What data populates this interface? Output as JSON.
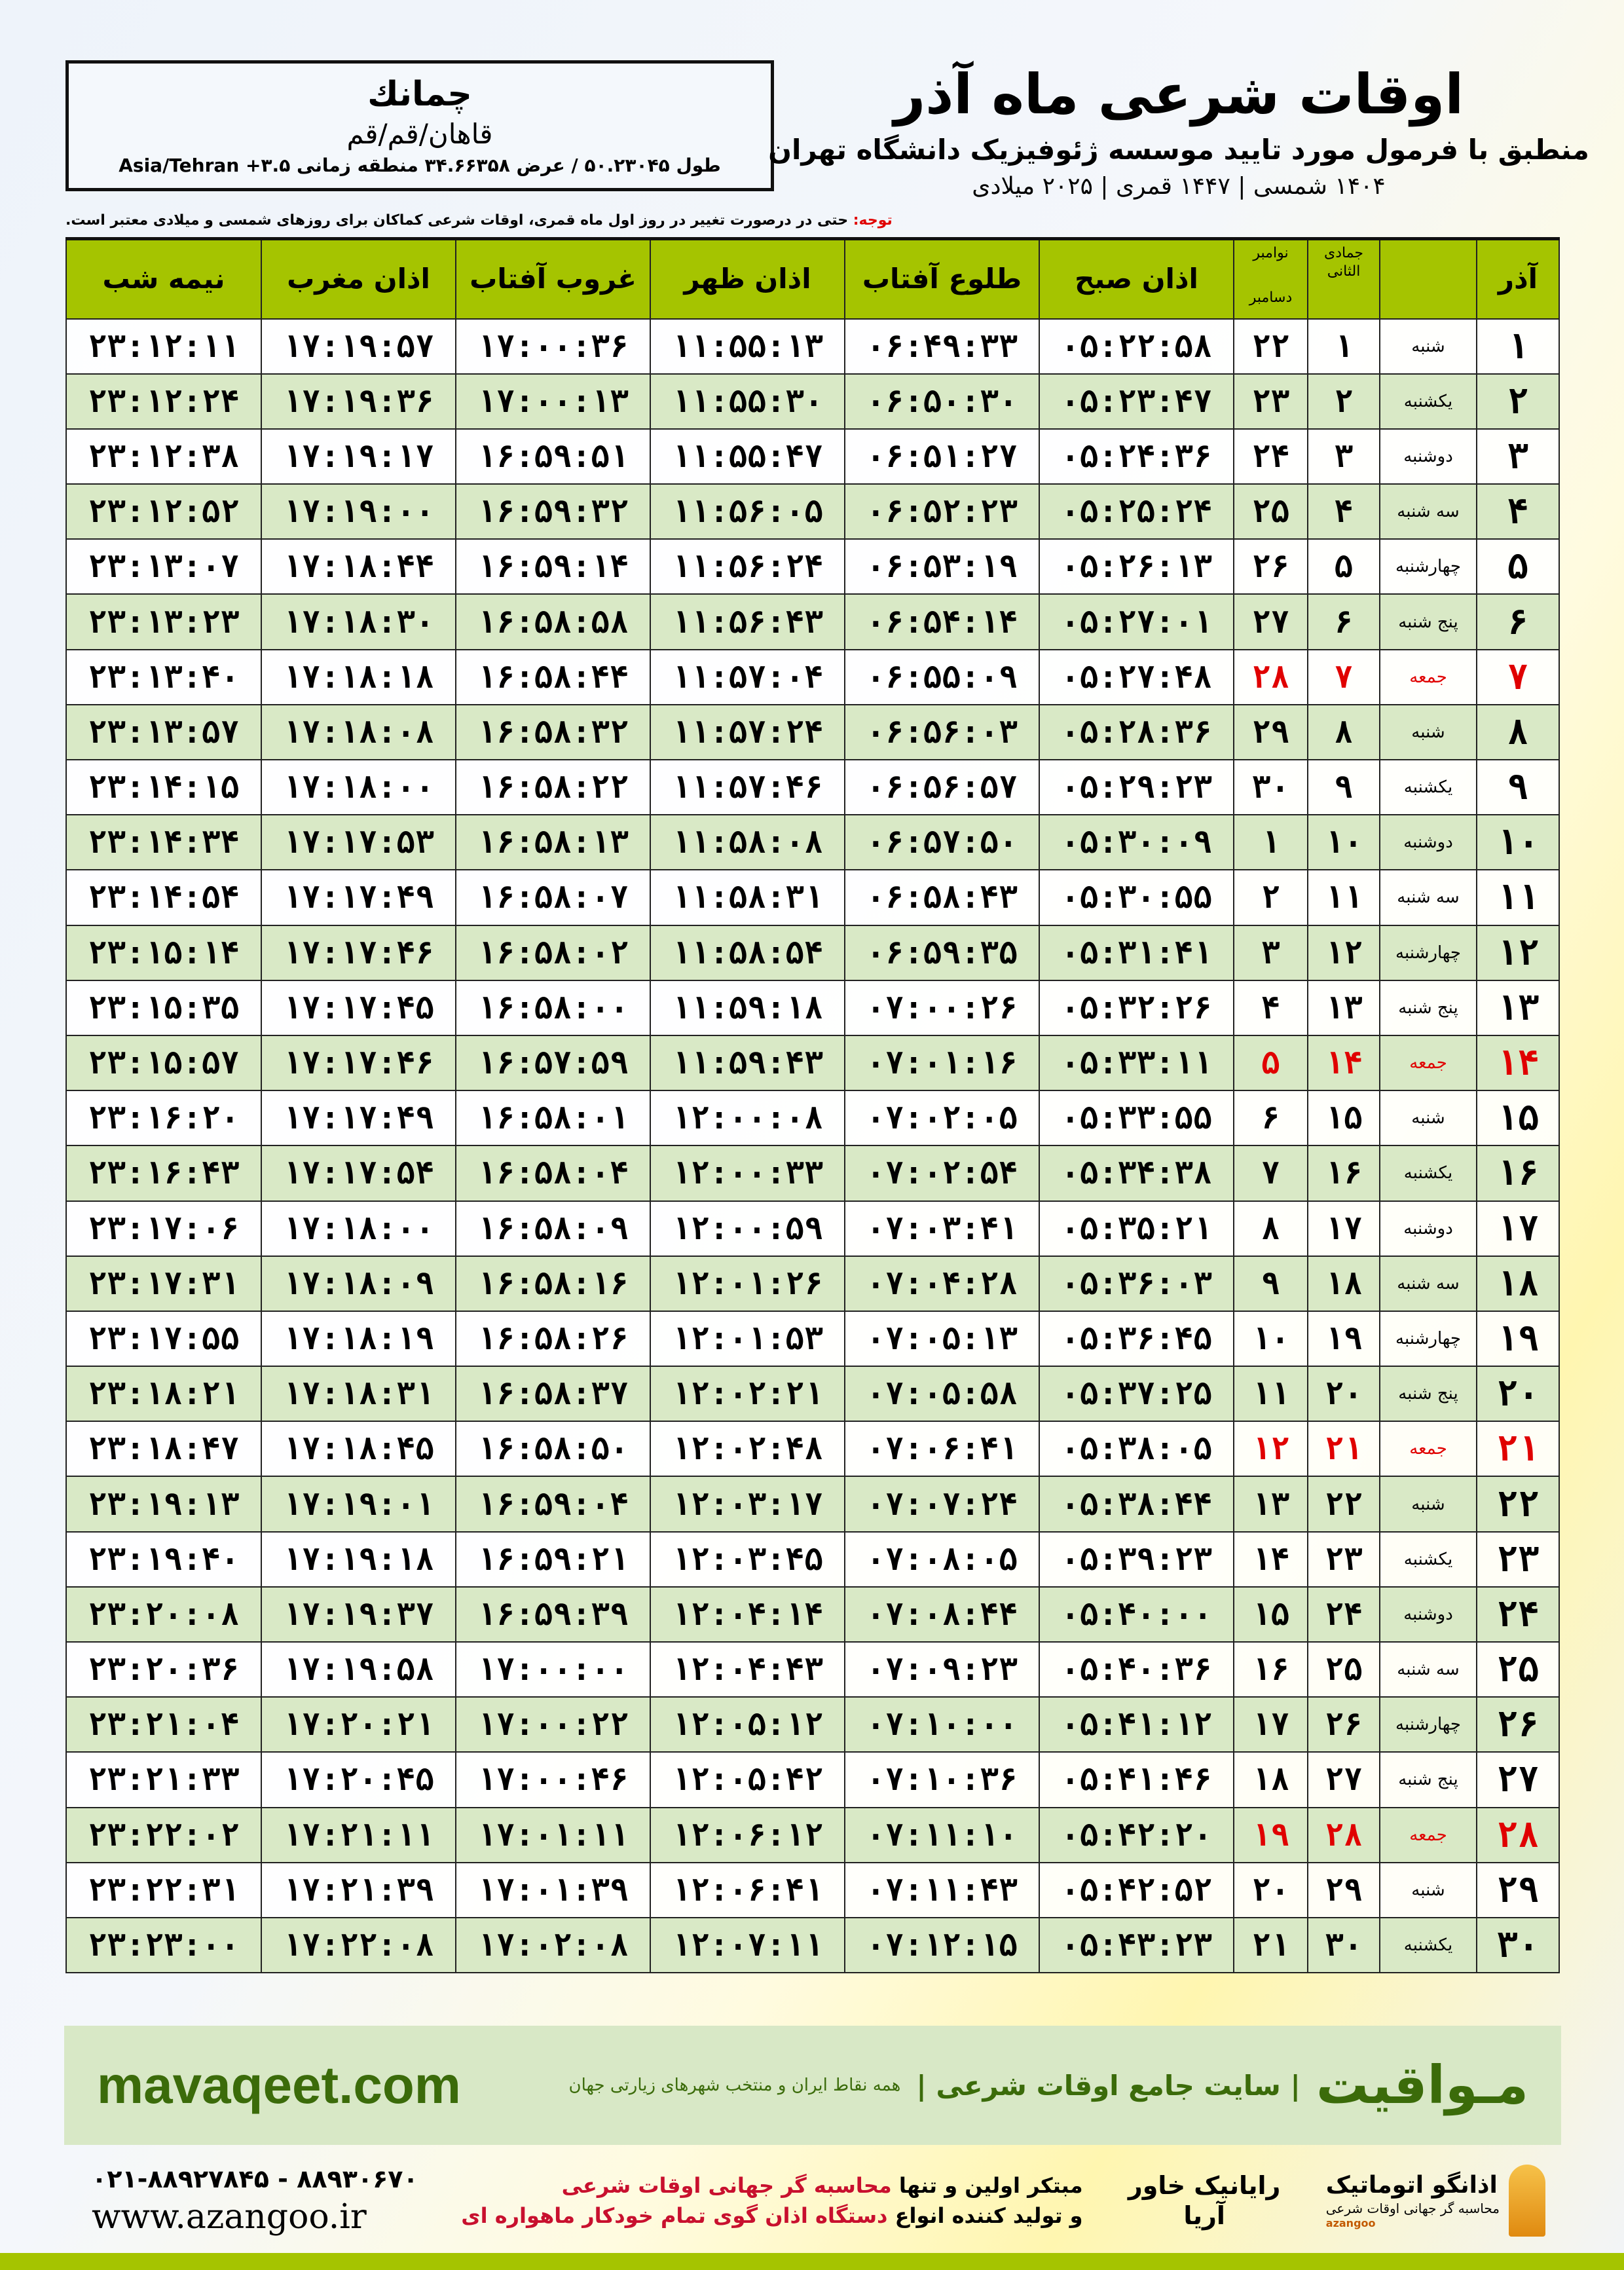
{
  "location": {
    "name": "چمانك",
    "region": "قاهان/قم/قم",
    "coords": "طول ۵۰.۲۳۰۴۵ / عرض ۳۴.۶۶۳۵۸ منطقه زمانی ۳.۵+ Asia/Tehran"
  },
  "header": {
    "title": "اوقات شرعی ماه آذر",
    "subtitle": "منطبق با فرمول مورد تایید موسسه ژئوفیزیک دانشگاه تهران",
    "years": "۱۴۰۴ شمسی | ۱۴۴۷ قمری | ۲۰۲۵ میلادی"
  },
  "note": {
    "label": "توجه:",
    "text": " حتی در درصورت تغییر در روز اول ماه قمری، اوقات شرعی کماکان برای روزهای شمسی و میلادی معتبر است."
  },
  "columns": {
    "day": "آذر",
    "hijri": "جمادی الثانی",
    "greg_top": "نوامبر",
    "greg_bottom": "دسامبر",
    "sobh": "اذان صبح",
    "tolu": "طلوع آفتاب",
    "zohr": "اذان ظهر",
    "ghorub": "غروب آفتاب",
    "maghreb": "اذان مغرب",
    "nimeh": "نیمه شب"
  },
  "colors": {
    "header_green": "#a5c400",
    "row_green": "#d9e9c6",
    "friday": "#e00000",
    "brand_green": "#3b6b0a"
  },
  "rows": [
    [
      "۱",
      "شنبه",
      "۱",
      "۲۲",
      "۰۵:۲۲:۵۸",
      "۰۶:۴۹:۳۳",
      "۱۱:۵۵:۱۳",
      "۱۷:۰۰:۳۶",
      "۱۷:۱۹:۵۷",
      "۲۳:۱۲:۱۱"
    ],
    [
      "۲",
      "یکشنبه",
      "۲",
      "۲۳",
      "۰۵:۲۳:۴۷",
      "۰۶:۵۰:۳۰",
      "۱۱:۵۵:۳۰",
      "۱۷:۰۰:۱۳",
      "۱۷:۱۹:۳۶",
      "۲۳:۱۲:۲۴"
    ],
    [
      "۳",
      "دوشنبه",
      "۳",
      "۲۴",
      "۰۵:۲۴:۳۶",
      "۰۶:۵۱:۲۷",
      "۱۱:۵۵:۴۷",
      "۱۶:۵۹:۵۱",
      "۱۷:۱۹:۱۷",
      "۲۳:۱۲:۳۸"
    ],
    [
      "۴",
      "سه شنبه",
      "۴",
      "۲۵",
      "۰۵:۲۵:۲۴",
      "۰۶:۵۲:۲۳",
      "۱۱:۵۶:۰۵",
      "۱۶:۵۹:۳۲",
      "۱۷:۱۹:۰۰",
      "۲۳:۱۲:۵۲"
    ],
    [
      "۵",
      "چهارشنبه",
      "۵",
      "۲۶",
      "۰۵:۲۶:۱۳",
      "۰۶:۵۳:۱۹",
      "۱۱:۵۶:۲۴",
      "۱۶:۵۹:۱۴",
      "۱۷:۱۸:۴۴",
      "۲۳:۱۳:۰۷"
    ],
    [
      "۶",
      "پنج شنبه",
      "۶",
      "۲۷",
      "۰۵:۲۷:۰۱",
      "۰۶:۵۴:۱۴",
      "۱۱:۵۶:۴۳",
      "۱۶:۵۸:۵۸",
      "۱۷:۱۸:۳۰",
      "۲۳:۱۳:۲۳"
    ],
    [
      "۷",
      "جمعه",
      "۷",
      "۲۸",
      "۰۵:۲۷:۴۸",
      "۰۶:۵۵:۰۹",
      "۱۱:۵۷:۰۴",
      "۱۶:۵۸:۴۴",
      "۱۷:۱۸:۱۸",
      "۲۳:۱۳:۴۰"
    ],
    [
      "۸",
      "شنبه",
      "۸",
      "۲۹",
      "۰۵:۲۸:۳۶",
      "۰۶:۵۶:۰۳",
      "۱۱:۵۷:۲۴",
      "۱۶:۵۸:۳۲",
      "۱۷:۱۸:۰۸",
      "۲۳:۱۳:۵۷"
    ],
    [
      "۹",
      "یکشنبه",
      "۹",
      "۳۰",
      "۰۵:۲۹:۲۳",
      "۰۶:۵۶:۵۷",
      "۱۱:۵۷:۴۶",
      "۱۶:۵۸:۲۲",
      "۱۷:۱۸:۰۰",
      "۲۳:۱۴:۱۵"
    ],
    [
      "۱۰",
      "دوشنبه",
      "۱۰",
      "۱",
      "۰۵:۳۰:۰۹",
      "۰۶:۵۷:۵۰",
      "۱۱:۵۸:۰۸",
      "۱۶:۵۸:۱۳",
      "۱۷:۱۷:۵۳",
      "۲۳:۱۴:۳۴"
    ],
    [
      "۱۱",
      "سه شنبه",
      "۱۱",
      "۲",
      "۰۵:۳۰:۵۵",
      "۰۶:۵۸:۴۳",
      "۱۱:۵۸:۳۱",
      "۱۶:۵۸:۰۷",
      "۱۷:۱۷:۴۹",
      "۲۳:۱۴:۵۴"
    ],
    [
      "۱۲",
      "چهارشنبه",
      "۱۲",
      "۳",
      "۰۵:۳۱:۴۱",
      "۰۶:۵۹:۳۵",
      "۱۱:۵۸:۵۴",
      "۱۶:۵۸:۰۲",
      "۱۷:۱۷:۴۶",
      "۲۳:۱۵:۱۴"
    ],
    [
      "۱۳",
      "پنج شنبه",
      "۱۳",
      "۴",
      "۰۵:۳۲:۲۶",
      "۰۷:۰۰:۲۶",
      "۱۱:۵۹:۱۸",
      "۱۶:۵۸:۰۰",
      "۱۷:۱۷:۴۵",
      "۲۳:۱۵:۳۵"
    ],
    [
      "۱۴",
      "جمعه",
      "۱۴",
      "۵",
      "۰۵:۳۳:۱۱",
      "۰۷:۰۱:۱۶",
      "۱۱:۵۹:۴۳",
      "۱۶:۵۷:۵۹",
      "۱۷:۱۷:۴۶",
      "۲۳:۱۵:۵۷"
    ],
    [
      "۱۵",
      "شنبه",
      "۱۵",
      "۶",
      "۰۵:۳۳:۵۵",
      "۰۷:۰۲:۰۵",
      "۱۲:۰۰:۰۸",
      "۱۶:۵۸:۰۱",
      "۱۷:۱۷:۴۹",
      "۲۳:۱۶:۲۰"
    ],
    [
      "۱۶",
      "یکشنبه",
      "۱۶",
      "۷",
      "۰۵:۳۴:۳۸",
      "۰۷:۰۲:۵۴",
      "۱۲:۰۰:۳۳",
      "۱۶:۵۸:۰۴",
      "۱۷:۱۷:۵۴",
      "۲۳:۱۶:۴۳"
    ],
    [
      "۱۷",
      "دوشنبه",
      "۱۷",
      "۸",
      "۰۵:۳۵:۲۱",
      "۰۷:۰۳:۴۱",
      "۱۲:۰۰:۵۹",
      "۱۶:۵۸:۰۹",
      "۱۷:۱۸:۰۰",
      "۲۳:۱۷:۰۶"
    ],
    [
      "۱۸",
      "سه شنبه",
      "۱۸",
      "۹",
      "۰۵:۳۶:۰۳",
      "۰۷:۰۴:۲۸",
      "۱۲:۰۱:۲۶",
      "۱۶:۵۸:۱۶",
      "۱۷:۱۸:۰۹",
      "۲۳:۱۷:۳۱"
    ],
    [
      "۱۹",
      "چهارشنبه",
      "۱۹",
      "۱۰",
      "۰۵:۳۶:۴۵",
      "۰۷:۰۵:۱۳",
      "۱۲:۰۱:۵۳",
      "۱۶:۵۸:۲۶",
      "۱۷:۱۸:۱۹",
      "۲۳:۱۷:۵۵"
    ],
    [
      "۲۰",
      "پنج شنبه",
      "۲۰",
      "۱۱",
      "۰۵:۳۷:۲۵",
      "۰۷:۰۵:۵۸",
      "۱۲:۰۲:۲۱",
      "۱۶:۵۸:۳۷",
      "۱۷:۱۸:۳۱",
      "۲۳:۱۸:۲۱"
    ],
    [
      "۲۱",
      "جمعه",
      "۲۱",
      "۱۲",
      "۰۵:۳۸:۰۵",
      "۰۷:۰۶:۴۱",
      "۱۲:۰۲:۴۸",
      "۱۶:۵۸:۵۰",
      "۱۷:۱۸:۴۵",
      "۲۳:۱۸:۴۷"
    ],
    [
      "۲۲",
      "شنبه",
      "۲۲",
      "۱۳",
      "۰۵:۳۸:۴۴",
      "۰۷:۰۷:۲۴",
      "۱۲:۰۳:۱۷",
      "۱۶:۵۹:۰۴",
      "۱۷:۱۹:۰۱",
      "۲۳:۱۹:۱۳"
    ],
    [
      "۲۳",
      "یکشنبه",
      "۲۳",
      "۱۴",
      "۰۵:۳۹:۲۳",
      "۰۷:۰۸:۰۵",
      "۱۲:۰۳:۴۵",
      "۱۶:۵۹:۲۱",
      "۱۷:۱۹:۱۸",
      "۲۳:۱۹:۴۰"
    ],
    [
      "۲۴",
      "دوشنبه",
      "۲۴",
      "۱۵",
      "۰۵:۴۰:۰۰",
      "۰۷:۰۸:۴۴",
      "۱۲:۰۴:۱۴",
      "۱۶:۵۹:۳۹",
      "۱۷:۱۹:۳۷",
      "۲۳:۲۰:۰۸"
    ],
    [
      "۲۵",
      "سه شنبه",
      "۲۵",
      "۱۶",
      "۰۵:۴۰:۳۶",
      "۰۷:۰۹:۲۳",
      "۱۲:۰۴:۴۳",
      "۱۷:۰۰:۰۰",
      "۱۷:۱۹:۵۸",
      "۲۳:۲۰:۳۶"
    ],
    [
      "۲۶",
      "چهارشنبه",
      "۲۶",
      "۱۷",
      "۰۵:۴۱:۱۲",
      "۰۷:۱۰:۰۰",
      "۱۲:۰۵:۱۲",
      "۱۷:۰۰:۲۲",
      "۱۷:۲۰:۲۱",
      "۲۳:۲۱:۰۴"
    ],
    [
      "۲۷",
      "پنج شنبه",
      "۲۷",
      "۱۸",
      "۰۵:۴۱:۴۶",
      "۰۷:۱۰:۳۶",
      "۱۲:۰۵:۴۲",
      "۱۷:۰۰:۴۶",
      "۱۷:۲۰:۴۵",
      "۲۳:۲۱:۳۳"
    ],
    [
      "۲۸",
      "جمعه",
      "۲۸",
      "۱۹",
      "۰۵:۴۲:۲۰",
      "۰۷:۱۱:۱۰",
      "۱۲:۰۶:۱۲",
      "۱۷:۰۱:۱۱",
      "۱۷:۲۱:۱۱",
      "۲۳:۲۲:۰۲"
    ],
    [
      "۲۹",
      "شنبه",
      "۲۹",
      "۲۰",
      "۰۵:۴۲:۵۲",
      "۰۷:۱۱:۴۳",
      "۱۲:۰۶:۴۱",
      "۱۷:۰۱:۳۹",
      "۱۷:۲۱:۳۹",
      "۲۳:۲۲:۳۱"
    ],
    [
      "۳۰",
      "یکشنبه",
      "۳۰",
      "۲۱",
      "۰۵:۴۳:۲۳",
      "۰۷:۱۲:۱۵",
      "۱۲:۰۷:۱۱",
      "۱۷:۰۲:۰۸",
      "۱۷:۲۲:۰۸",
      "۲۳:۲۳:۰۰"
    ]
  ],
  "banner": {
    "brand": "مـواقیت",
    "tagline": "| سایت جامع اوقات شرعی |",
    "tagline2": "همه نقاط ایران و منتخب شهرهای زیارتی جهان",
    "site": "mavaqeet.com"
  },
  "footer": {
    "phones": "۰۲۱-۸۸۹۲۷۸۴۵ - ۸۸۹۳۰۶۷۰",
    "web": "www.azangoo.ir",
    "promo1a": "مبتکر اولین و تنها ",
    "promo1b": "محاسبه گر جهانی اوقات شرعی",
    "promo2a": "و تولید کننده انواع ",
    "promo2b": "دستگاه اذان گوی تمام خودکار ماهواره ای",
    "rayanik": "رایانیک خاور آریا",
    "azangoo_name": "اذانگو اتوماتیک",
    "azangoo_sub": "محاسبه گر جهانی اوقات شرعی",
    "azangoo_en": "azangoo"
  }
}
